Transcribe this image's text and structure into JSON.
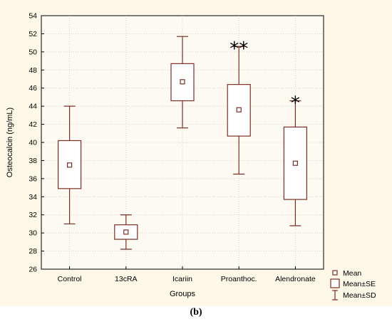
{
  "panel_label": "(b)",
  "chart_data": {
    "type": "box",
    "ylabel": "Osteocalcin (ng/mL)",
    "xlabel": "Groups",
    "ylim": [
      26,
      54
    ],
    "yticks": [
      26,
      28,
      30,
      32,
      34,
      36,
      38,
      40,
      42,
      44,
      46,
      48,
      50,
      52,
      54
    ],
    "yticks_labels": [
      "26",
      "28",
      "30",
      "32",
      "34",
      "36",
      "38",
      "40",
      "42",
      "44",
      "46",
      "48",
      "50",
      "52",
      "54"
    ],
    "grid": true,
    "legend_position": "bottom-right",
    "categories": [
      "Control",
      "13cRA",
      "Icariin",
      "Proanthoc.",
      "Alendronate"
    ],
    "mean": [
      37.5,
      30.1,
      46.7,
      43.6,
      37.7
    ],
    "se_low": [
      34.9,
      29.3,
      44.6,
      40.7,
      33.7
    ],
    "se_high": [
      40.2,
      30.9,
      48.7,
      46.4,
      41.7
    ],
    "sd_low": [
      31.0,
      28.2,
      41.6,
      36.5,
      30.8
    ],
    "sd_high": [
      44.0,
      32.0,
      51.7,
      50.6,
      44.6
    ],
    "significance": [
      "",
      "",
      "",
      "**",
      "*"
    ],
    "legend": [
      "Mean",
      "Mean±SE",
      "Mean±SD"
    ],
    "colors": {
      "box_stroke": "#7a2f26",
      "box_fill": "#ffffff",
      "plot_background": "#fdfaf2",
      "figure_background": "#fdf8e7",
      "grid": "#c8c8c8"
    }
  }
}
